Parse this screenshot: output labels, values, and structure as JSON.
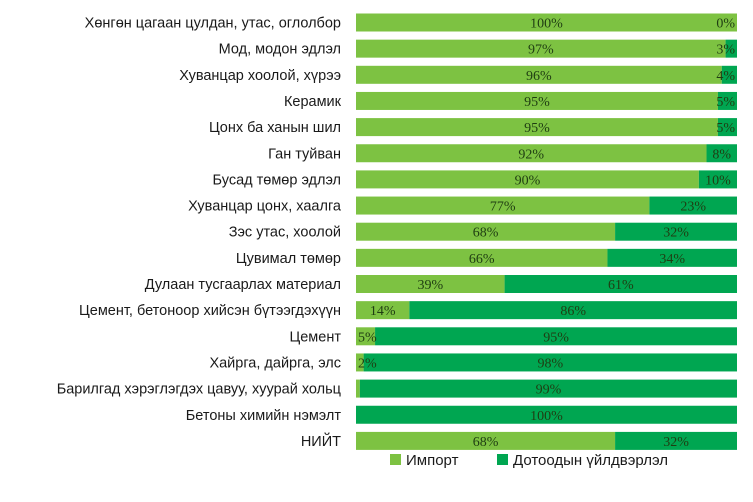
{
  "chart_data": {
    "type": "bar",
    "orientation": "horizontal",
    "stacked": true,
    "percent": true,
    "title": "",
    "xlabel": "",
    "ylabel": "",
    "xlim": [
      0,
      100
    ],
    "grid": false,
    "legend_position": "bottom",
    "categories": [
      "Хөнгөн цагаан цулдан, утас, оглолбор",
      "Мод, модон эдлэл",
      "Хуванцар хоолой, хүрээ",
      "Керамик",
      "Цонх ба ханын шил",
      "Ган туйван",
      "Бусад төмөр эдлэл",
      "Хуванцар цонх, хаалга",
      "Зэс утас, хоолой",
      "Цувимал төмөр",
      "Дулаан тусгаарлах материал",
      "Цемент, бетоноор хийсэн бүтээгдэхүүн",
      "Цемент",
      "Хайрга, дайрга, элс",
      "Барилгад хэрэглэгдэх цавуу, хуурай хольц",
      "Бетоны химийн нэмэлт",
      "НИЙТ"
    ],
    "series": [
      {
        "name": "Импорт",
        "color": "#7dc242",
        "values": [
          100,
          97,
          96,
          95,
          95,
          92,
          90,
          77,
          68,
          66,
          39,
          14,
          5,
          2,
          1,
          0,
          68
        ],
        "labels": [
          "100%",
          "97%",
          "96%",
          "95%",
          "95%",
          "92%",
          "90%",
          "77%",
          "68%",
          "66%",
          "39%",
          "14%",
          "5%",
          "2%",
          "",
          "",
          "68%"
        ]
      },
      {
        "name": "Дотоодын үйлдвэрлэл",
        "color": "#00a651",
        "values": [
          0,
          3,
          4,
          5,
          5,
          8,
          10,
          23,
          32,
          34,
          61,
          86,
          95,
          98,
          99,
          100,
          32
        ],
        "labels": [
          "0%",
          "3%",
          "4%",
          "5%",
          "5%",
          "8%",
          "10%",
          "23%",
          "32%",
          "34%",
          "61%",
          "86%",
          "95%",
          "98%",
          "99%",
          "100%",
          "32%"
        ]
      }
    ]
  }
}
